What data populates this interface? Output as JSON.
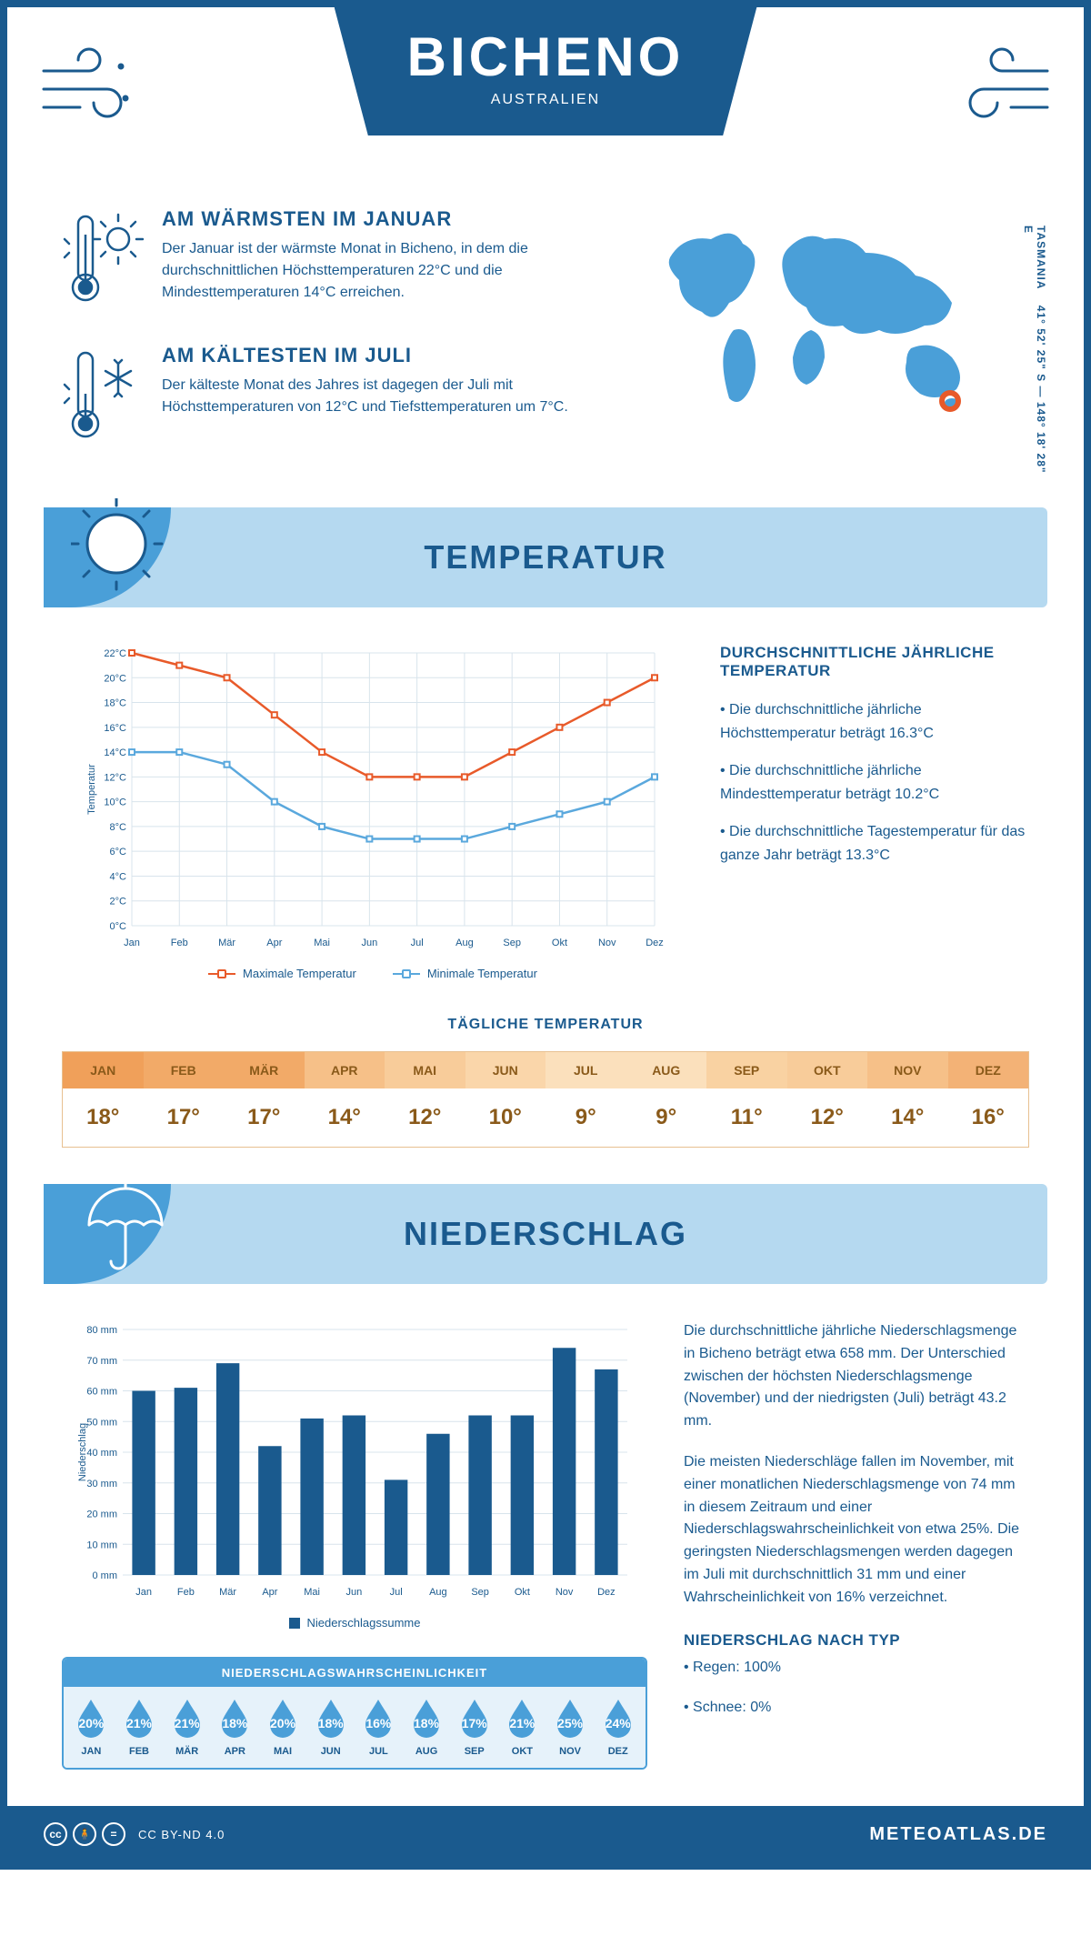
{
  "header": {
    "title": "BICHENO",
    "subtitle": "AUSTRALIEN"
  },
  "info": {
    "warm": {
      "heading": "AM WÄRMSTEN IM JANUAR",
      "text": "Der Januar ist der wärmste Monat in Bicheno, in dem die durchschnittlichen Höchsttemperaturen 22°C und die Mindesttemperaturen 14°C erreichen."
    },
    "cold": {
      "heading": "AM KÄLTESTEN IM JULI",
      "text": "Der kälteste Monat des Jahres ist dagegen der Juli mit Höchsttemperaturen von 12°C und Tiefsttemperaturen um 7°C."
    },
    "coords": "41° 52' 25\" S — 148° 18' 28\" E",
    "region": "TASMANIA"
  },
  "colors": {
    "primary": "#1a5a8e",
    "lightblue": "#b5d9f0",
    "midblue": "#4a9fd8",
    "orange_line": "#e85a2a",
    "blue_line": "#5aa8dd",
    "grid": "#d8e4ec"
  },
  "temp_section": {
    "title": "TEMPERATUR",
    "info_title": "DURCHSCHNITTLICHE JÄHRLICHE TEMPERATUR",
    "bullets": [
      "• Die durchschnittliche jährliche Höchsttemperatur beträgt 16.3°C",
      "• Die durchschnittliche jährliche Mindesttemperatur beträgt 10.2°C",
      "• Die durchschnittliche Tagestemperatur für das ganze Jahr beträgt 13.3°C"
    ],
    "chart": {
      "type": "line",
      "months": [
        "Jan",
        "Feb",
        "Mär",
        "Apr",
        "Mai",
        "Jun",
        "Jul",
        "Aug",
        "Sep",
        "Okt",
        "Nov",
        "Dez"
      ],
      "y_label": "Temperatur",
      "ylim": [
        0,
        22
      ],
      "ytick_step": 2,
      "y_suffix": "°C",
      "series": [
        {
          "name": "Maximale Temperatur",
          "color": "#e85a2a",
          "values": [
            22,
            21,
            20,
            17,
            14,
            12,
            12,
            12,
            14,
            16,
            18,
            20
          ]
        },
        {
          "name": "Minimale Temperatur",
          "color": "#5aa8dd",
          "values": [
            14,
            14,
            13,
            10,
            8,
            7,
            7,
            7,
            8,
            9,
            10,
            12
          ]
        }
      ],
      "legend": [
        "Maximale Temperatur",
        "Minimale Temperatur"
      ]
    },
    "daily": {
      "title": "TÄGLICHE TEMPERATUR",
      "months": [
        "JAN",
        "FEB",
        "MÄR",
        "APR",
        "MAI",
        "JUN",
        "JUL",
        "AUG",
        "SEP",
        "OKT",
        "NOV",
        "DEZ"
      ],
      "values": [
        "18°",
        "17°",
        "17°",
        "14°",
        "12°",
        "10°",
        "9°",
        "9°",
        "11°",
        "12°",
        "14°",
        "16°"
      ],
      "bg_colors": [
        "#f0a05a",
        "#f2aa68",
        "#f2aa68",
        "#f6c088",
        "#f8cc9a",
        "#fad6aa",
        "#fbe0bc",
        "#fbe0bc",
        "#f9d2a2",
        "#f8cc9a",
        "#f6c088",
        "#f3b276"
      ]
    }
  },
  "precip_section": {
    "title": "NIEDERSCHLAG",
    "chart": {
      "type": "bar",
      "months": [
        "Jan",
        "Feb",
        "Mär",
        "Apr",
        "Mai",
        "Jun",
        "Jul",
        "Aug",
        "Sep",
        "Okt",
        "Nov",
        "Dez"
      ],
      "y_label": "Niederschlag",
      "ylim": [
        0,
        80
      ],
      "ytick_step": 10,
      "y_suffix": " mm",
      "bar_color": "#1a5a8e",
      "values": [
        60,
        61,
        69,
        42,
        51,
        52,
        31,
        46,
        52,
        52,
        74,
        67
      ],
      "legend": "Niederschlagssumme"
    },
    "text1": "Die durchschnittliche jährliche Niederschlagsmenge in Bicheno beträgt etwa 658 mm. Der Unterschied zwischen der höchsten Niederschlagsmenge (November) und der niedrigsten (Juli) beträgt 43.2 mm.",
    "text2": "Die meisten Niederschläge fallen im November, mit einer monatlichen Niederschlagsmenge von 74 mm in diesem Zeitraum und einer Niederschlagswahrscheinlichkeit von etwa 25%. Die geringsten Niederschlagsmengen werden dagegen im Juli mit durchschnittlich 31 mm und einer Wahrscheinlichkeit von 16% verzeichnet.",
    "type_title": "NIEDERSCHLAG NACH TYP",
    "type_bullets": [
      "• Regen: 100%",
      "• Schnee: 0%"
    ],
    "probability": {
      "title": "NIEDERSCHLAGSWAHRSCHEINLICHKEIT",
      "months": [
        "JAN",
        "FEB",
        "MÄR",
        "APR",
        "MAI",
        "JUN",
        "JUL",
        "AUG",
        "SEP",
        "OKT",
        "NOV",
        "DEZ"
      ],
      "values": [
        "20%",
        "21%",
        "21%",
        "18%",
        "20%",
        "18%",
        "16%",
        "18%",
        "17%",
        "21%",
        "25%",
        "24%"
      ]
    }
  },
  "footer": {
    "license": "CC BY-ND 4.0",
    "brand": "METEOATLAS.DE"
  }
}
